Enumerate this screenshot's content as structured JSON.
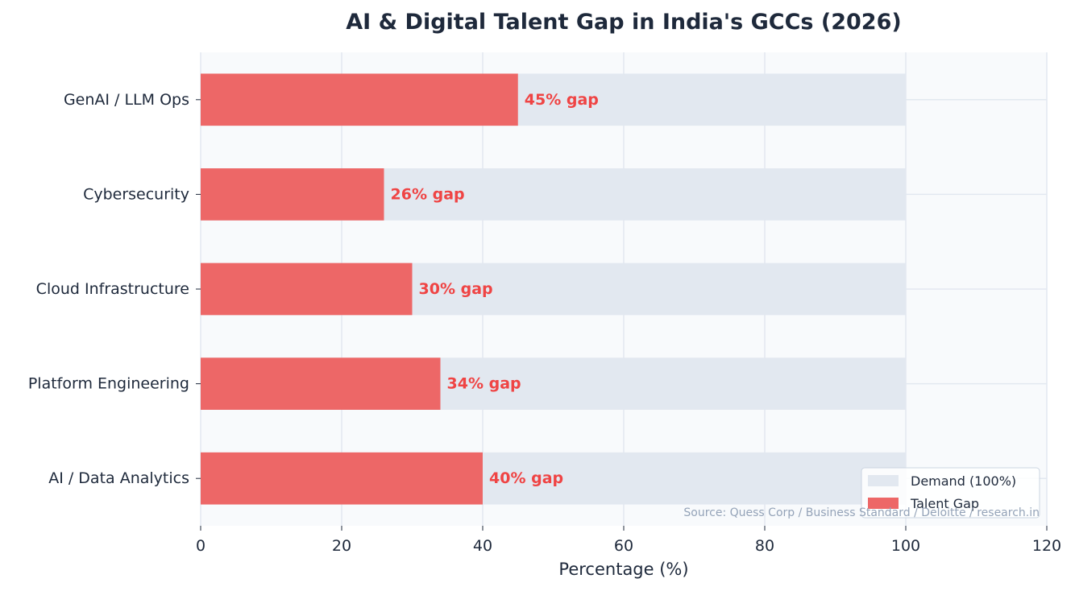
{
  "chart_data": {
    "type": "bar",
    "orientation": "horizontal",
    "title": "AI & Digital Talent Gap in India's GCCs (2026)",
    "xlabel": "Percentage (%)",
    "ylabel": "",
    "xlim": [
      0,
      120
    ],
    "xticks": [
      0,
      20,
      40,
      60,
      80,
      100,
      120
    ],
    "categories": [
      "GenAI / LLM Ops",
      "Cybersecurity",
      "Cloud Infrastructure",
      "Platform Engineering",
      "AI / Data Analytics"
    ],
    "series": [
      {
        "name": "Demand (100%)",
        "values": [
          100,
          100,
          100,
          100,
          100
        ],
        "color": "#e2e8f0"
      },
      {
        "name": "Talent Gap",
        "values": [
          45,
          26,
          30,
          34,
          40
        ],
        "color": "#ed6767"
      }
    ],
    "data_labels": [
      "45% gap",
      "26% gap",
      "30% gap",
      "34% gap",
      "40% gap"
    ],
    "legend_position": "lower-right",
    "grid": true,
    "source": "Source: Quess Corp / Business Standard / Deloitte / research.in"
  }
}
